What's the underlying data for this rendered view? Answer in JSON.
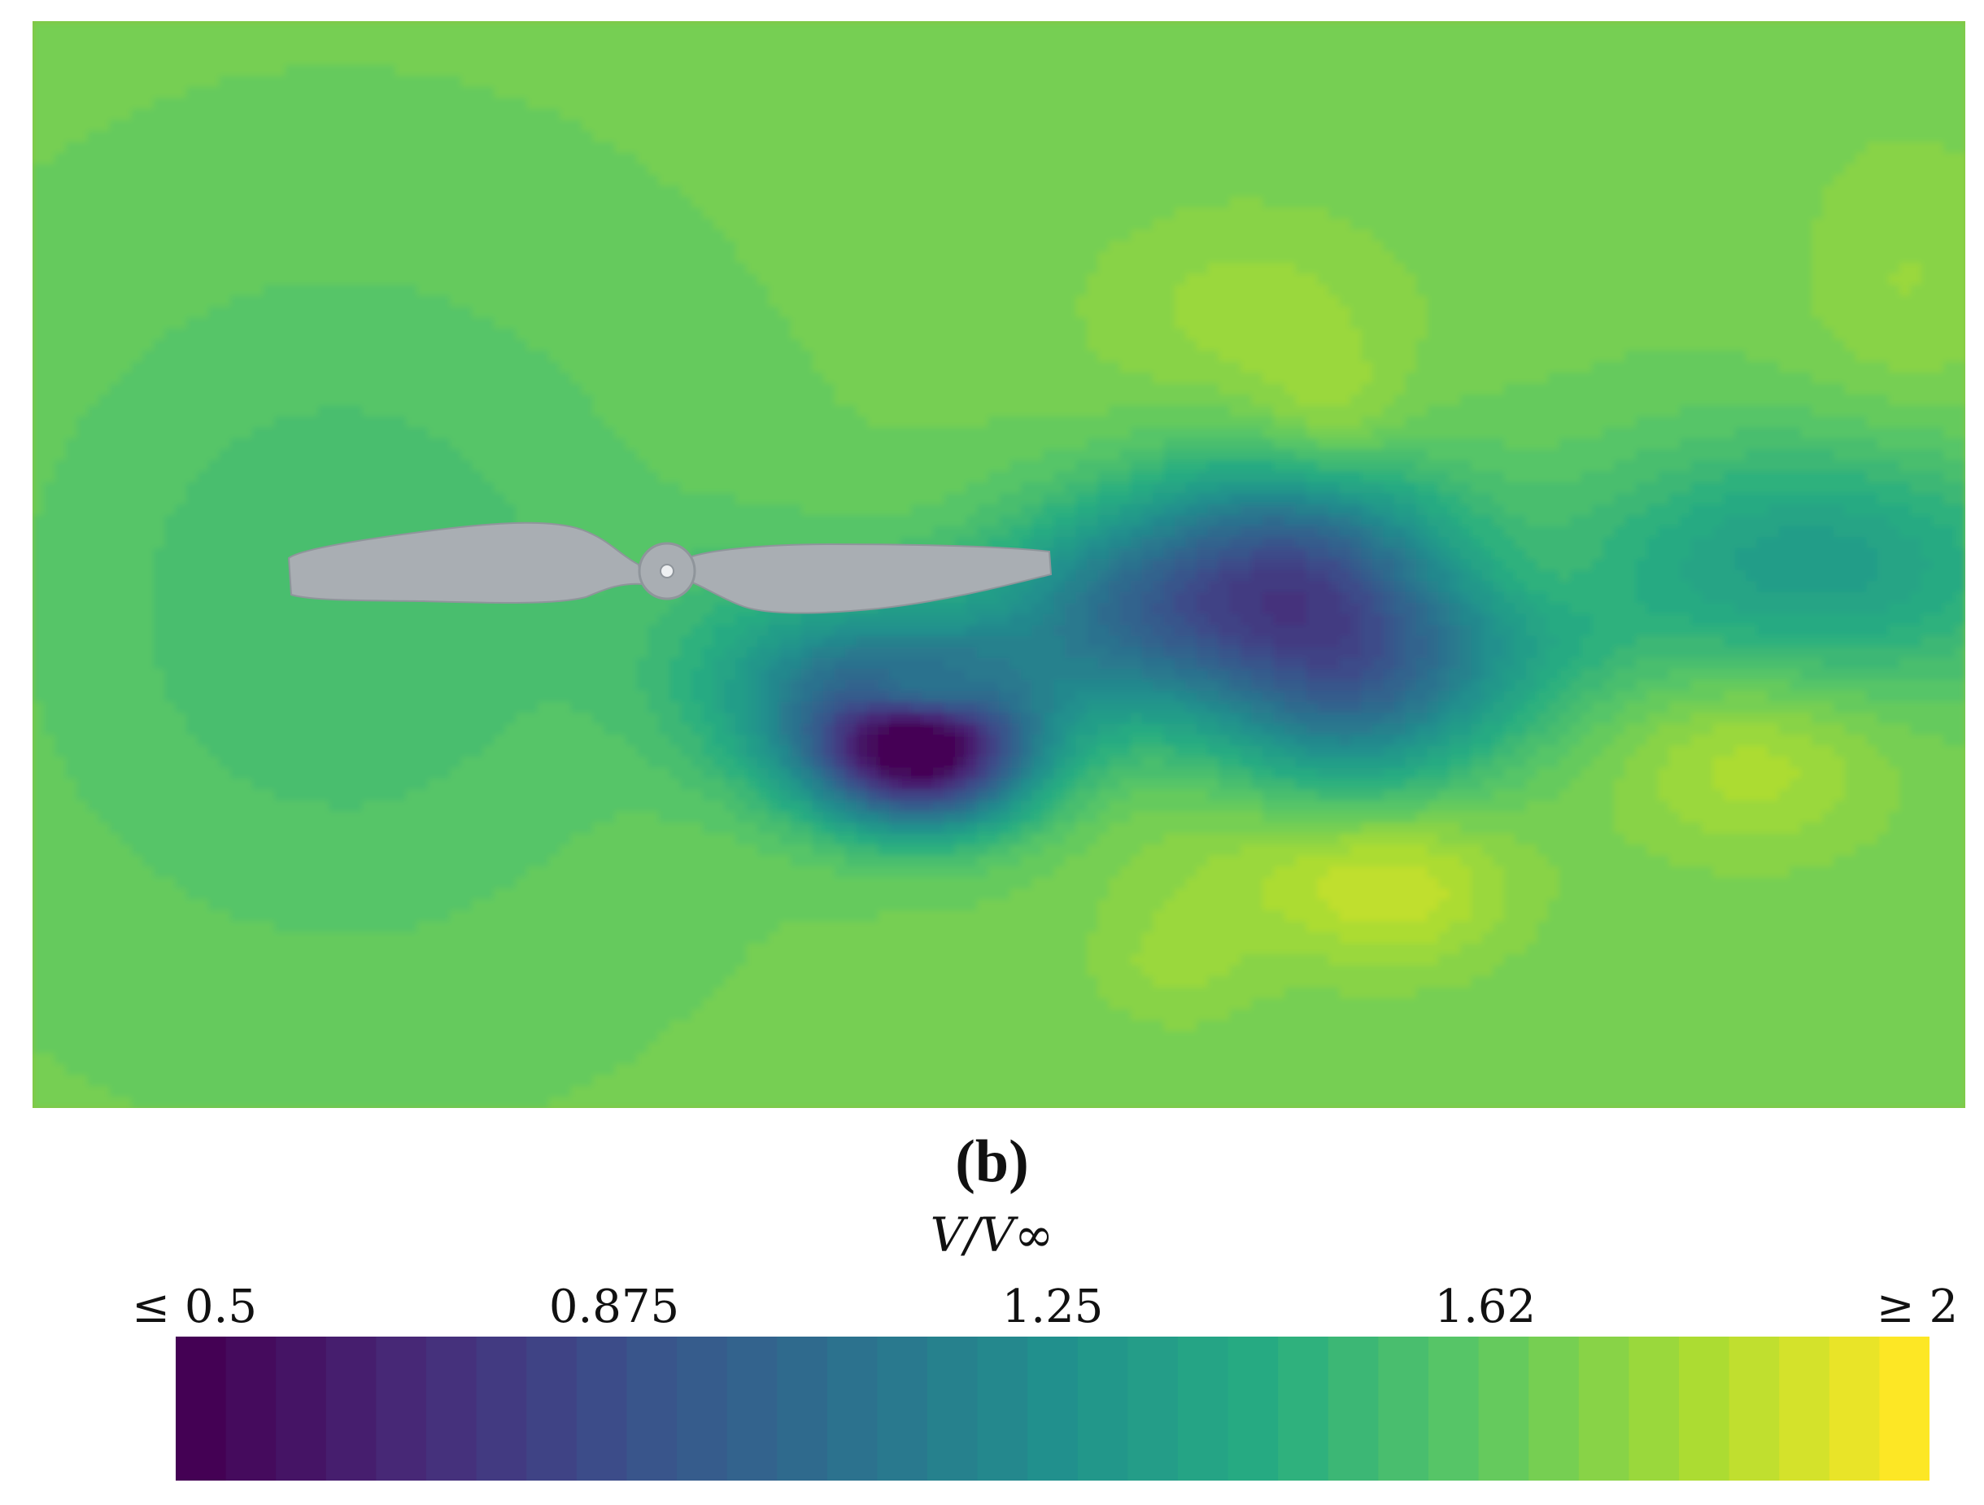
{
  "chart_data": {
    "type": "heatmap",
    "title": "",
    "panel_label": "(b)",
    "colorbar": {
      "label": "V/V∞",
      "min": 0.5,
      "max": 2,
      "levels": 35,
      "tick_values": [
        0.5,
        0.875,
        1.25,
        1.62,
        2
      ],
      "tick_labels": [
        "≤ 0.5",
        "0.875",
        "1.25",
        "1.62",
        "≥ 2"
      ],
      "colormap": "viridis"
    },
    "field": {
      "freestream_value": 1.68,
      "features": [
        {
          "x": 0.16,
          "y": 0.54,
          "peak": -0.14,
          "spread_x": 0.12,
          "spread_y": 0.22
        },
        {
          "x": 0.46,
          "y": 0.68,
          "peak": -0.93,
          "spread_x": 0.04,
          "spread_y": 0.045
        },
        {
          "x": 0.44,
          "y": 0.62,
          "peak": -0.55,
          "spread_x": 0.06,
          "spread_y": 0.06
        },
        {
          "x": 0.46,
          "y": 0.62,
          "peak": 0.3,
          "spread_x": 0.025,
          "spread_y": 0.018
        },
        {
          "x": 0.58,
          "y": 0.54,
          "peak": -0.6,
          "spread_x": 0.06,
          "spread_y": 0.07
        },
        {
          "x": 0.66,
          "y": 0.48,
          "peak": -0.45,
          "spread_x": 0.05,
          "spread_y": 0.07
        },
        {
          "x": 0.68,
          "y": 0.61,
          "peak": -0.55,
          "spread_x": 0.05,
          "spread_y": 0.08
        },
        {
          "x": 0.75,
          "y": 0.58,
          "peak": -0.2,
          "spread_x": 0.05,
          "spread_y": 0.06
        },
        {
          "x": 0.92,
          "y": 0.5,
          "peak": -0.35,
          "spread_x": 0.09,
          "spread_y": 0.08
        },
        {
          "x": 0.67,
          "y": 0.38,
          "peak": 0.16,
          "spread_x": 0.03,
          "spread_y": 0.05
        },
        {
          "x": 0.63,
          "y": 0.27,
          "peak": 0.1,
          "spread_x": 0.06,
          "spread_y": 0.07
        },
        {
          "x": 0.66,
          "y": 0.77,
          "peak": 0.14,
          "spread_x": 0.06,
          "spread_y": 0.06
        },
        {
          "x": 0.71,
          "y": 0.8,
          "peak": 0.14,
          "spread_x": 0.04,
          "spread_y": 0.05
        },
        {
          "x": 0.59,
          "y": 0.87,
          "peak": 0.08,
          "spread_x": 0.03,
          "spread_y": 0.04
        },
        {
          "x": 0.89,
          "y": 0.68,
          "peak": 0.16,
          "spread_x": 0.05,
          "spread_y": 0.06
        },
        {
          "x": 0.97,
          "y": 0.24,
          "peak": 0.08,
          "spread_x": 0.04,
          "spread_y": 0.1
        },
        {
          "x": 0.78,
          "y": 0.51,
          "peak": 0.05,
          "spread_x": 0.025,
          "spread_y": 0.03
        },
        {
          "x": 0.38,
          "y": 0.55,
          "peak": -0.08,
          "spread_x": 0.05,
          "spread_y": 0.07
        }
      ]
    },
    "propeller": {
      "color": "#a9aeb3",
      "hub_x": 0.329,
      "hub_y": 0.505
    }
  }
}
